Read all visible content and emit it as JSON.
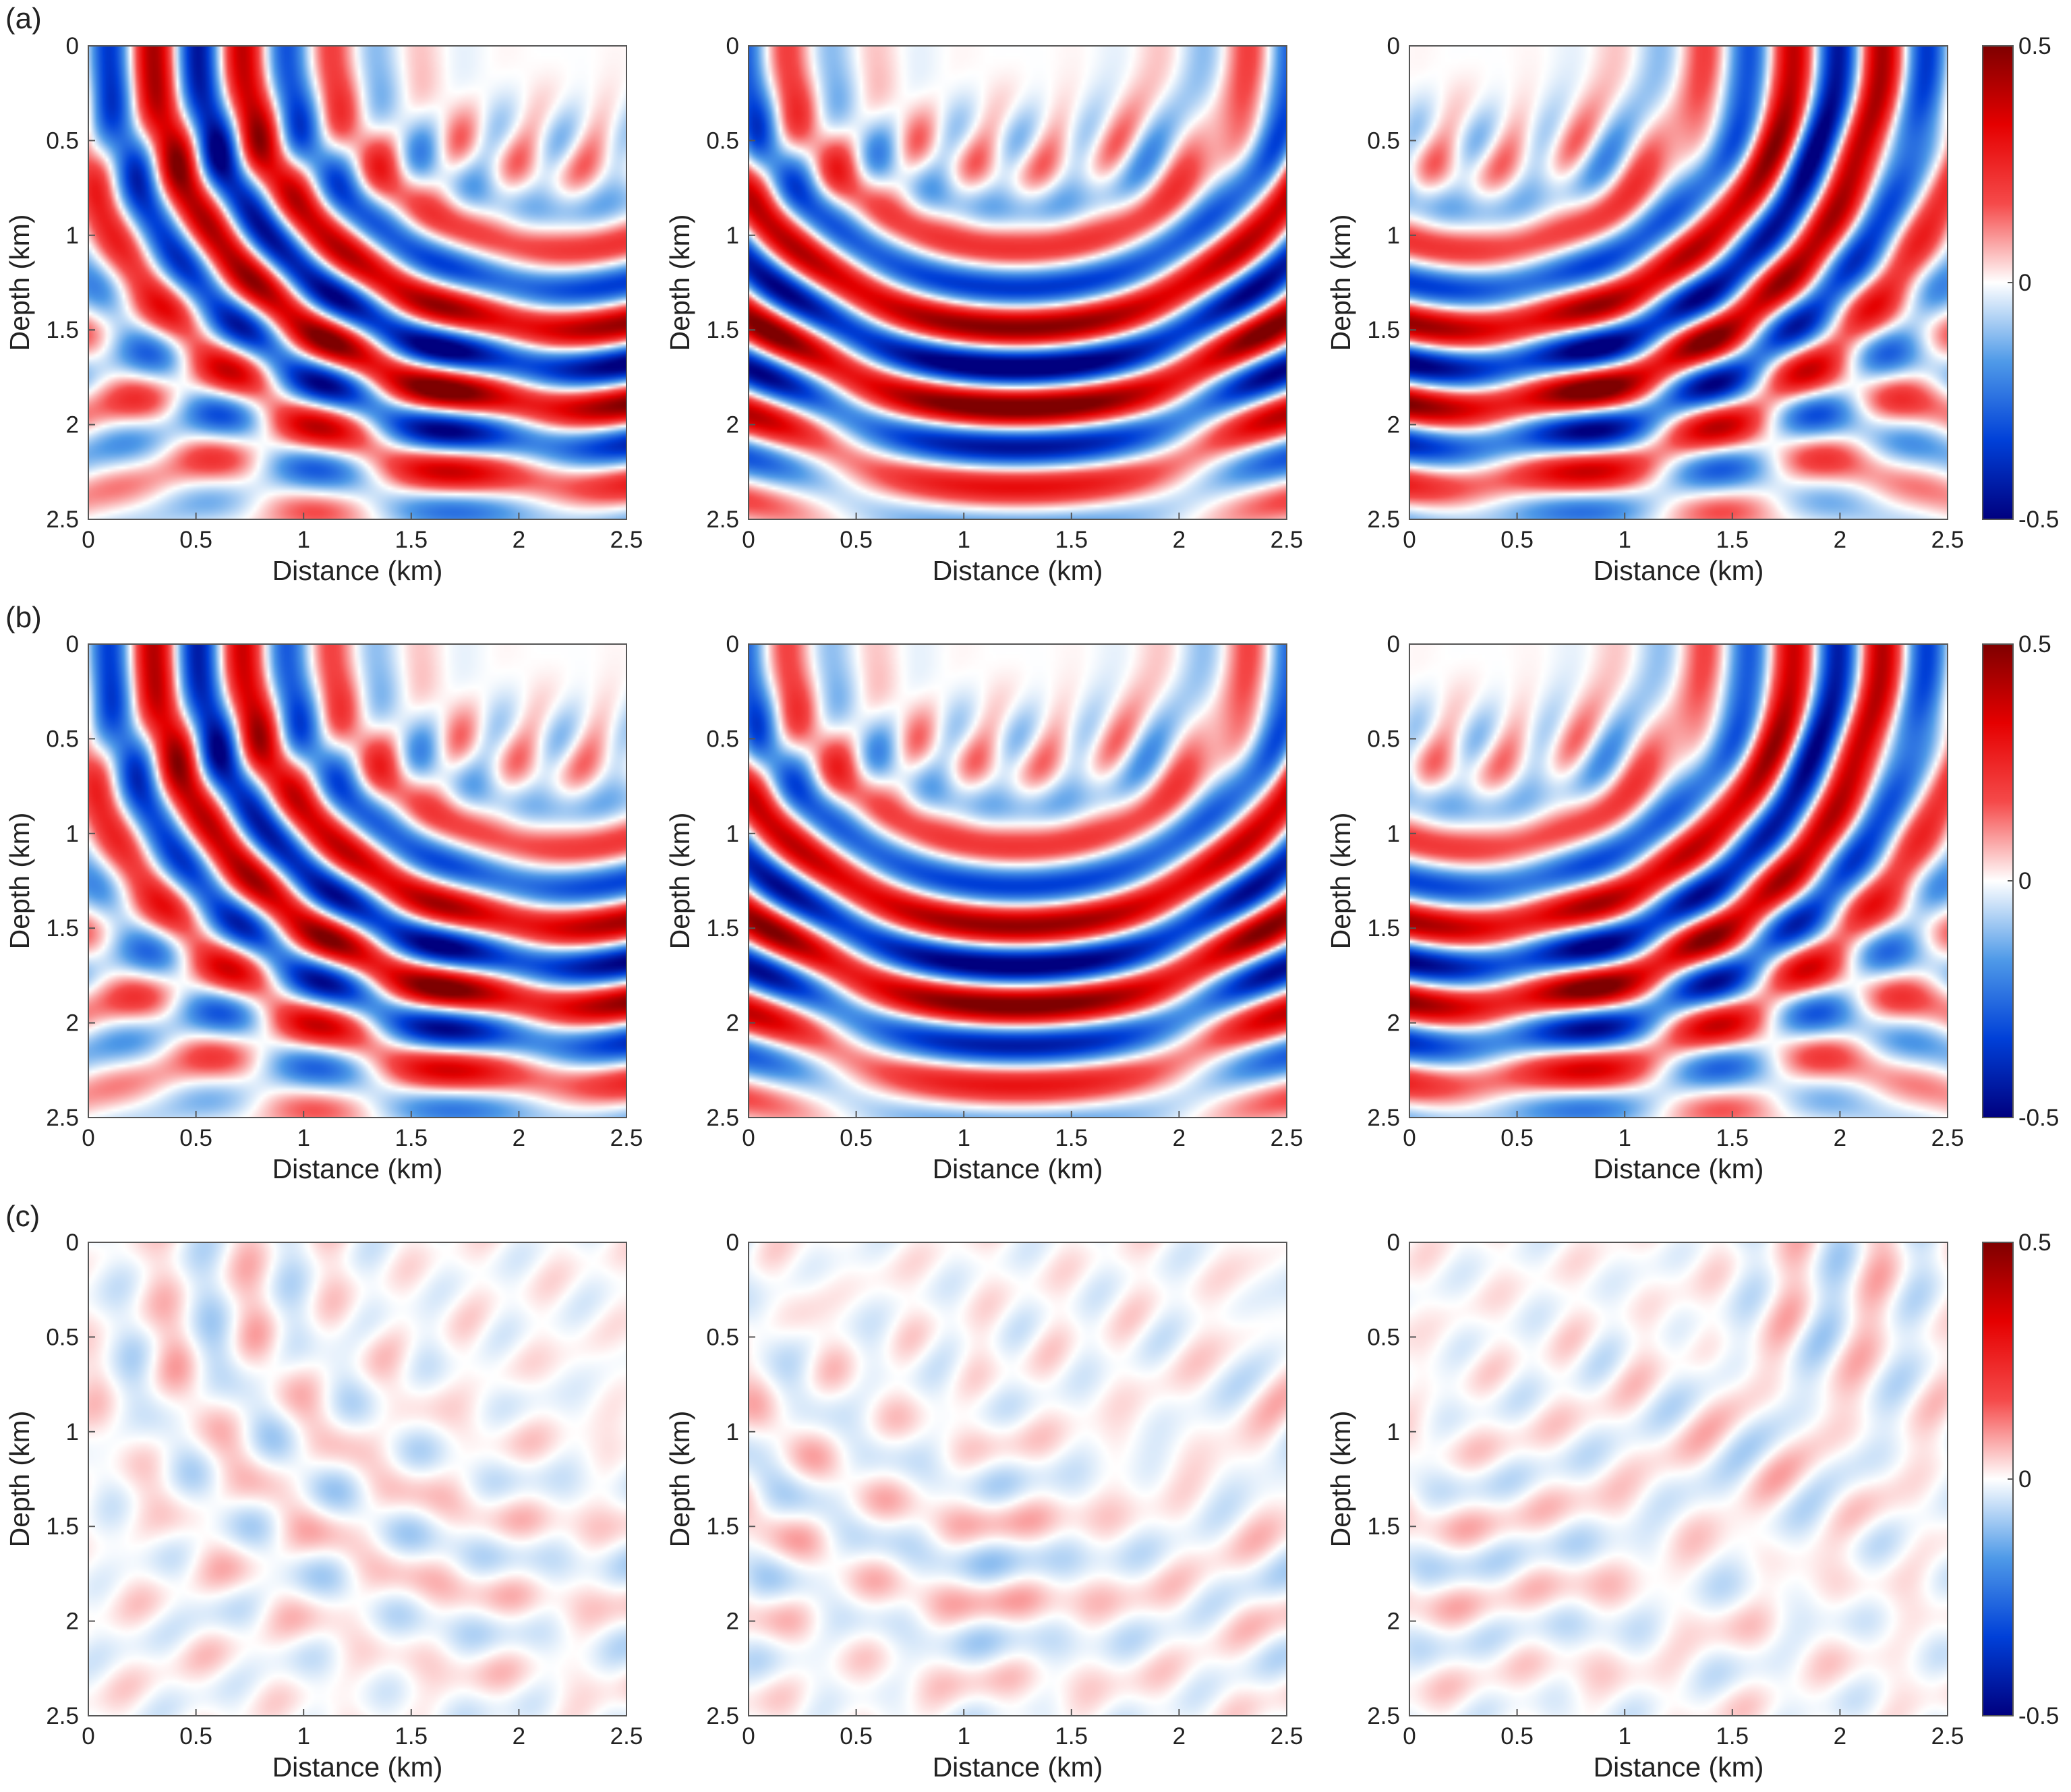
{
  "figure": {
    "row_labels": [
      "(a)",
      "(b)",
      "(c)"
    ]
  },
  "chart_data": {
    "type": "heatmap",
    "xlabel": "Distance (km)",
    "ylabel": "Depth (km)",
    "xlim": [
      0,
      2.5
    ],
    "ylim": [
      0,
      2.5
    ],
    "y_reversed": true,
    "x_ticks": [
      "0",
      "0.5",
      "1",
      "1.5",
      "2",
      "2.5"
    ],
    "y_ticks": [
      "0",
      "0.5",
      "1",
      "1.5",
      "2",
      "2.5"
    ],
    "colorbar": {
      "range": [
        -0.5,
        0.5
      ],
      "ticks": [
        "0.5",
        "0",
        "-0.5"
      ],
      "colormap": [
        "#00007f",
        "#0040d8",
        "#4f9ae8",
        "#ffffff",
        "#f54a4a",
        "#e50000",
        "#7f0000"
      ]
    },
    "grid": false,
    "panels": [
      {
        "row": "(a)",
        "col": 1,
        "source_x": 2.2,
        "strength": 1.0,
        "reflector": -0.35
      },
      {
        "row": "(a)",
        "col": 2,
        "source_x": 1.25,
        "strength": 1.0,
        "reflector": 0.0
      },
      {
        "row": "(a)",
        "col": 3,
        "source_x": 0.3,
        "strength": 1.0,
        "reflector": 0.35
      },
      {
        "row": "(b)",
        "col": 1,
        "source_x": 2.2,
        "strength": 0.95,
        "reflector": -0.35
      },
      {
        "row": "(b)",
        "col": 2,
        "source_x": 1.25,
        "strength": 0.95,
        "reflector": 0.0
      },
      {
        "row": "(b)",
        "col": 3,
        "source_x": 0.3,
        "strength": 0.95,
        "reflector": 0.35
      },
      {
        "row": "(c)",
        "col": 1,
        "source_x": 2.2,
        "strength": 0.12,
        "reflector": -0.35
      },
      {
        "row": "(c)",
        "col": 2,
        "source_x": 1.25,
        "strength": 0.12,
        "reflector": 0.0
      },
      {
        "row": "(c)",
        "col": 3,
        "source_x": 0.3,
        "strength": 0.12,
        "reflector": 0.35
      }
    ]
  }
}
